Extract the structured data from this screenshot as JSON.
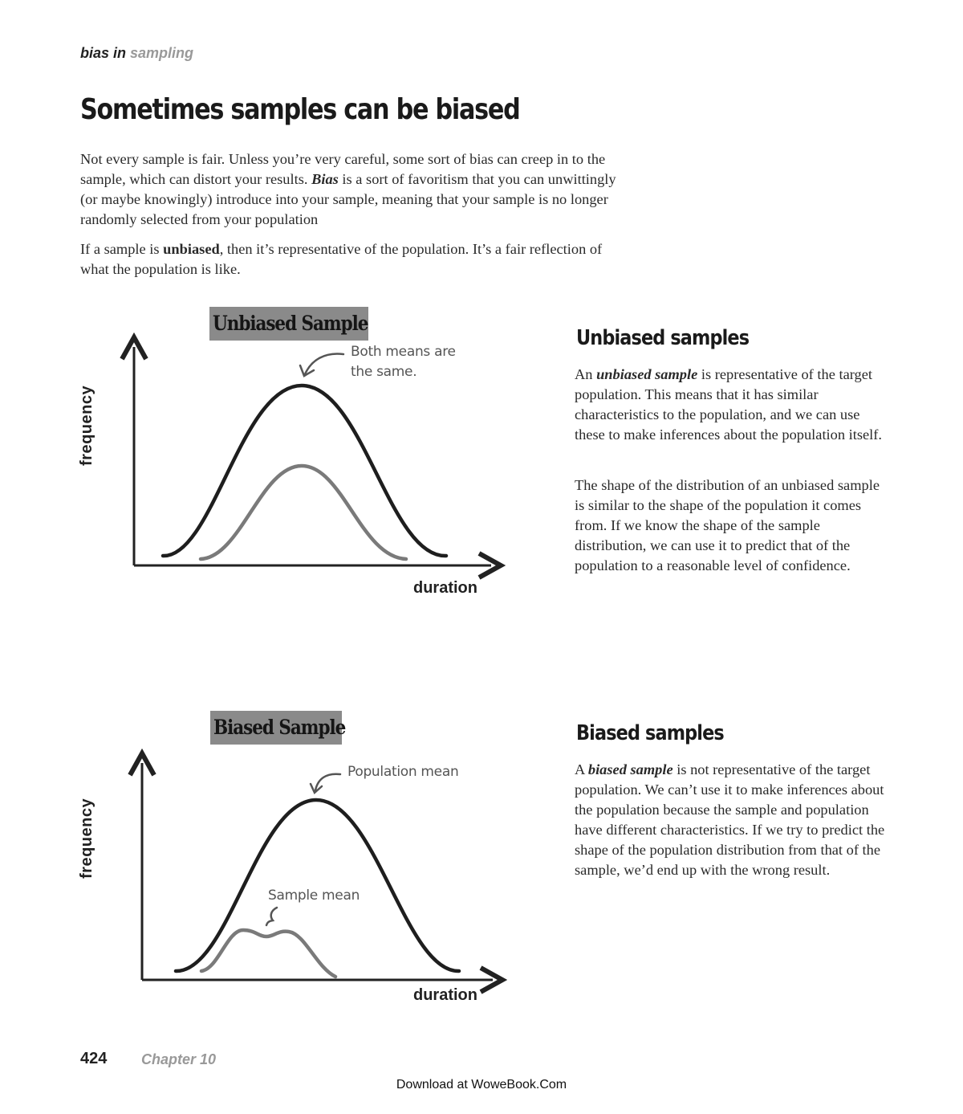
{
  "header": {
    "part1": "bias in",
    "part2": "sampling"
  },
  "title": "Sometimes samples can be biased",
  "intro": {
    "p1_a": "Not every sample is fair. Unless you’re very careful, some sort of bias can creep in to the sample, which can distort your results. ",
    "p1_bold": "Bias",
    "p1_b": " is a sort of favoritism that you can unwittingly (or maybe knowingly) introduce into your sample, meaning that your sample is no longer randomly selected from your population",
    "p2_a": "If a sample is ",
    "p2_bold": "unbiased",
    "p2_b": ", then it’s representative of the population. It’s a fair reflection of what the population is like."
  },
  "unbiased_section": {
    "heading": "Unbiased samples",
    "p1_a": "An ",
    "p1_em": "unbiased sample",
    "p1_b": " is representative of the target population. This means that it has similar characteristics to the population, and we can use these to make inferences about the population itself.",
    "p2": "The shape of the distribution of an unbiased sample is similar to the shape of the population it comes from. If we know the shape of the sample distribution, we can use it to predict that of the population to a reasonable level of confidence."
  },
  "biased_section": {
    "heading": "Biased samples",
    "p1_a": "A ",
    "p1_em": "biased sample",
    "p1_b": " is not representative of the target population. We can’t use it to make inferences about the population because the sample and population have different characteristics. If we try to predict the shape of the population distribution from that of the sample, we’d end up with the wrong result."
  },
  "figures": {
    "unbiased": {
      "label": "Unbiased Sample",
      "y_axis": "frequency",
      "x_axis": "duration",
      "note": "Both means are the same."
    },
    "biased": {
      "label": "Biased Sample",
      "y_axis": "frequency",
      "x_axis": "duration",
      "note_population": "Population mean",
      "note_sample": "Sample mean"
    }
  },
  "colors": {
    "population_curve": "#1e1e1e",
    "sample_curve": "#7a7a7a",
    "annotation": "#555555"
  },
  "footer": {
    "page_number": "424",
    "chapter": "Chapter 10",
    "download": "Download at WoweBook.Com"
  }
}
